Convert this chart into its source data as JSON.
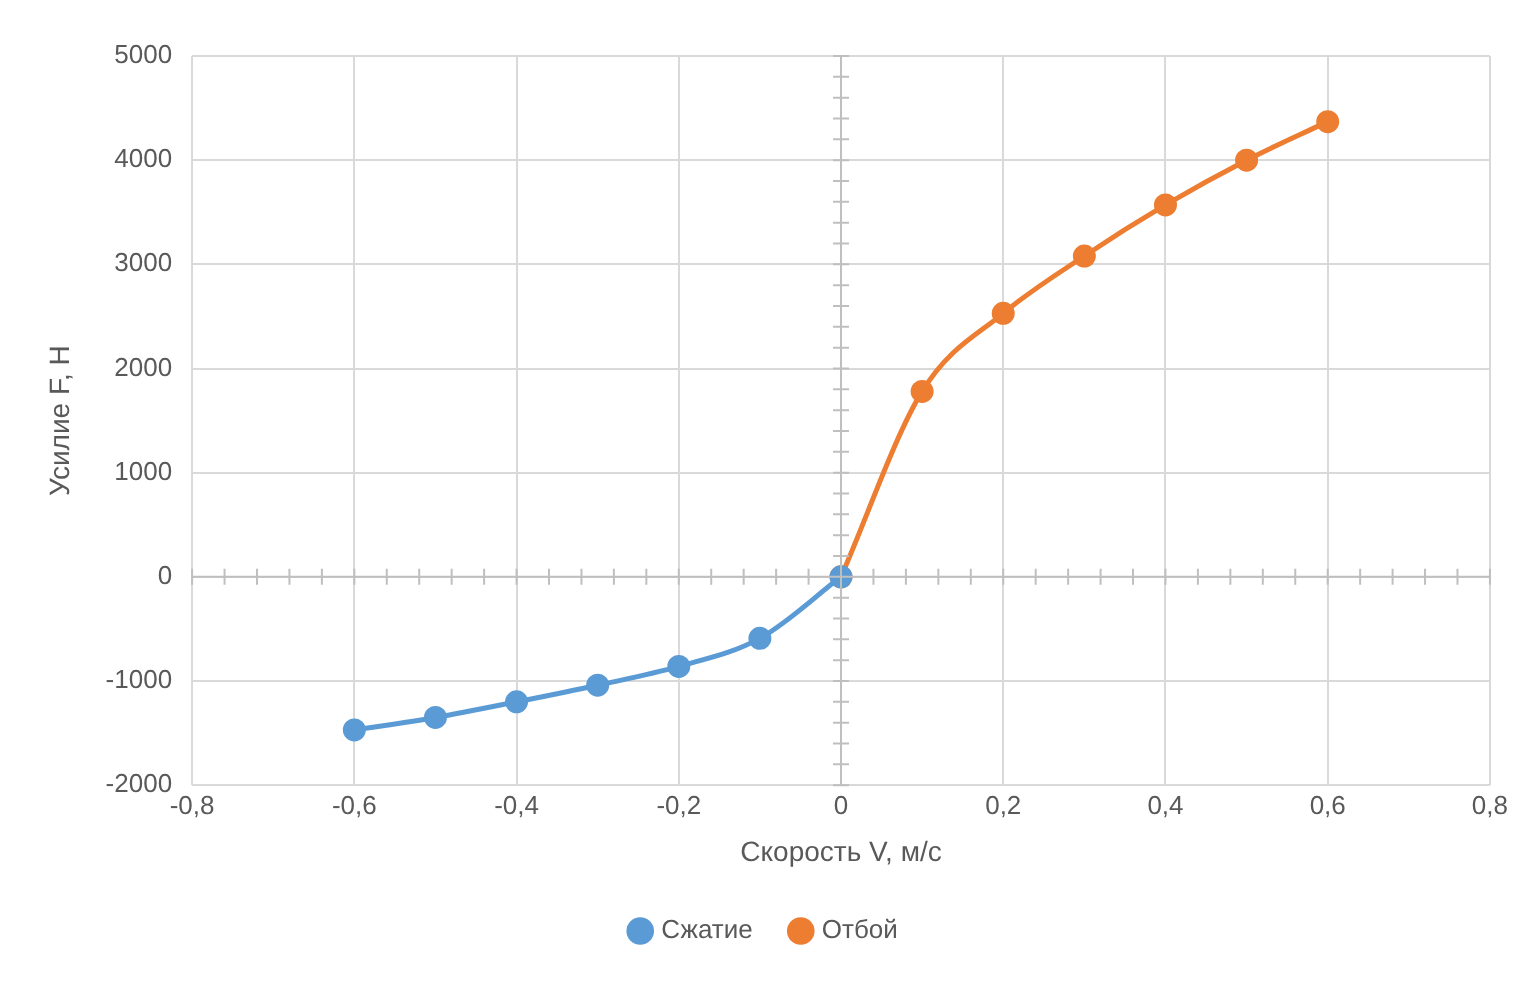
{
  "chart_data": {
    "type": "line",
    "xlabel": "Скорость V, м/с",
    "ylabel": "Усилие F, Н",
    "xlim": [
      -0.8,
      0.8
    ],
    "xticks": [
      {
        "value": -0.8,
        "label": "-0,8"
      },
      {
        "value": -0.6,
        "label": "-0,6"
      },
      {
        "value": -0.4,
        "label": "-0,4"
      },
      {
        "value": -0.2,
        "label": "-0,2"
      },
      0,
      {
        "value": 0.2,
        "label": "0,2"
      },
      {
        "value": 0.4,
        "label": "0,4"
      },
      {
        "value": 0.6,
        "label": "0,6"
      },
      {
        "value": 0.8,
        "label": "0,8"
      }
    ],
    "ylim": [
      -2000,
      5000
    ],
    "yticks": [
      -2000,
      -1000,
      0,
      1000,
      2000,
      3000,
      4000,
      5000
    ],
    "grid": true,
    "legend": "bottom",
    "marker": "circle",
    "line_style": "solid",
    "series": [
      {
        "name": "Сжатие",
        "color": "#5b9bd5",
        "x": [
          -0.6,
          -0.5,
          -0.4,
          -0.3,
          -0.2,
          -0.1,
          0
        ],
        "values": [
          -1470,
          -1350,
          -1200,
          -1040,
          -860,
          -590,
          0
        ]
      },
      {
        "name": "Отбой",
        "color": "#ed7d31",
        "x": [
          0,
          0.1,
          0.2,
          0.3,
          0.4,
          0.5,
          0.6
        ],
        "values": [
          0,
          1780,
          2530,
          3080,
          3570,
          4000,
          4370
        ]
      }
    ]
  }
}
